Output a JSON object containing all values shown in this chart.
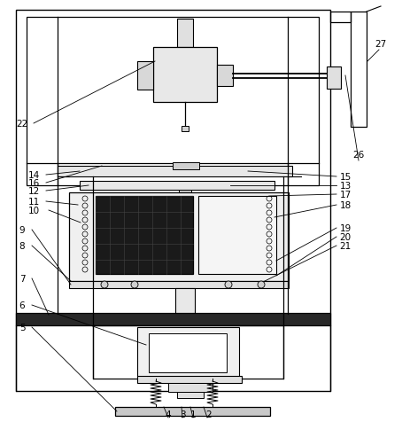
{
  "background_color": "#ffffff",
  "fig_width": 4.54,
  "fig_height": 4.77,
  "dpi": 100
}
